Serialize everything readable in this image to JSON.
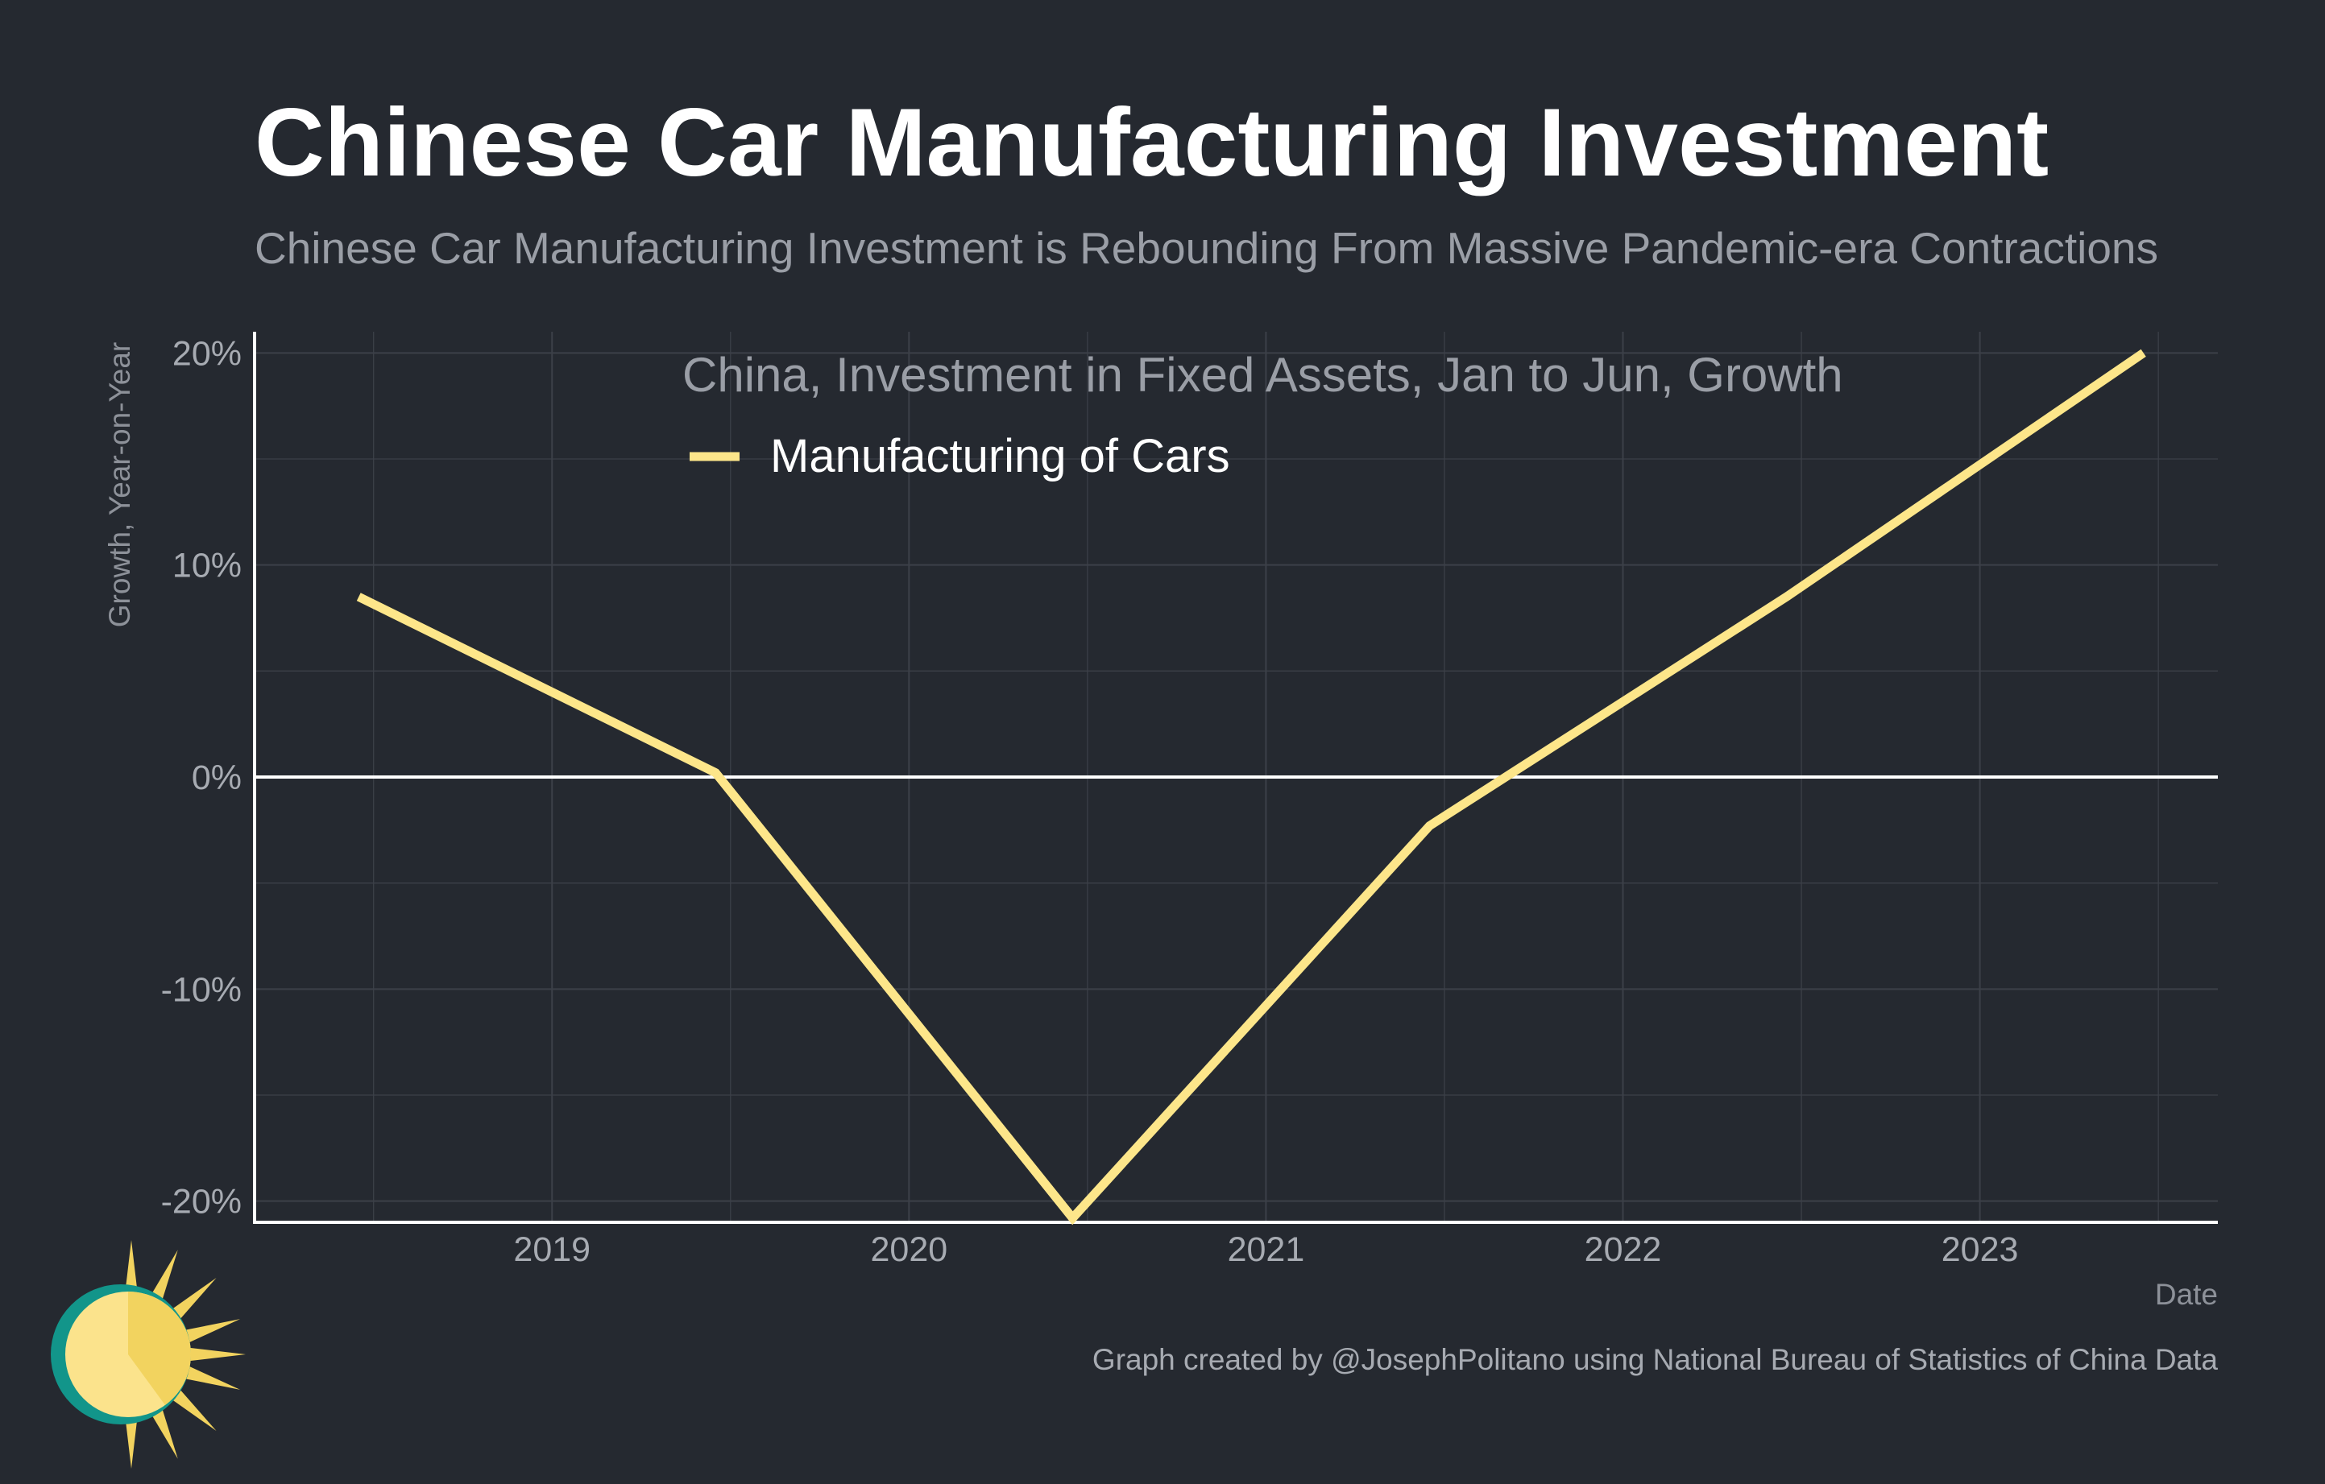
{
  "title": "Chinese Car Manufacturing Investment",
  "subtitle": "Chinese Car Manufacturing Investment is Rebounding From Massive Pandemic-era Contractions",
  "caption": "Graph created by @JosephPolitano using National Bureau of Statistics of China Data",
  "logo": {
    "icon": "sun-logo-icon"
  },
  "colors": {
    "background": "#252930",
    "line": "#fde68a",
    "grid": "#3c4048",
    "axis": "#ffffff",
    "logo_ring": "#12958a",
    "logo_sun": "#fbe38c",
    "logo_rays": "#f2d35f"
  },
  "chart_data": {
    "type": "line",
    "legend_title": "China, Investment in Fixed Assets, Jan to Jun, Growth",
    "legend_position": "top-center",
    "xlabel": "Date",
    "ylabel": "Growth, Year-on-Year",
    "x_ticks": [
      "2019",
      "2020",
      "2021",
      "2022",
      "2023"
    ],
    "y_ticks": [
      "20%",
      "10%",
      "0%",
      "-10%",
      "-20%"
    ],
    "xlim": [
      "2018-03",
      "2023-09"
    ],
    "ylim": [
      -21,
      21
    ],
    "grid": true,
    "zero_line": true,
    "series": [
      {
        "name": "Manufacturing of Cars",
        "color": "#fde68a",
        "points": [
          {
            "x": "2018-06",
            "y": 8.5
          },
          {
            "x": "2019-06",
            "y": 0.2
          },
          {
            "x": "2020-06",
            "y": -20.8
          },
          {
            "x": "2021-06",
            "y": -2.3
          },
          {
            "x": "2022-06",
            "y": 8.5
          },
          {
            "x": "2023-06",
            "y": 20.0
          }
        ]
      }
    ]
  }
}
